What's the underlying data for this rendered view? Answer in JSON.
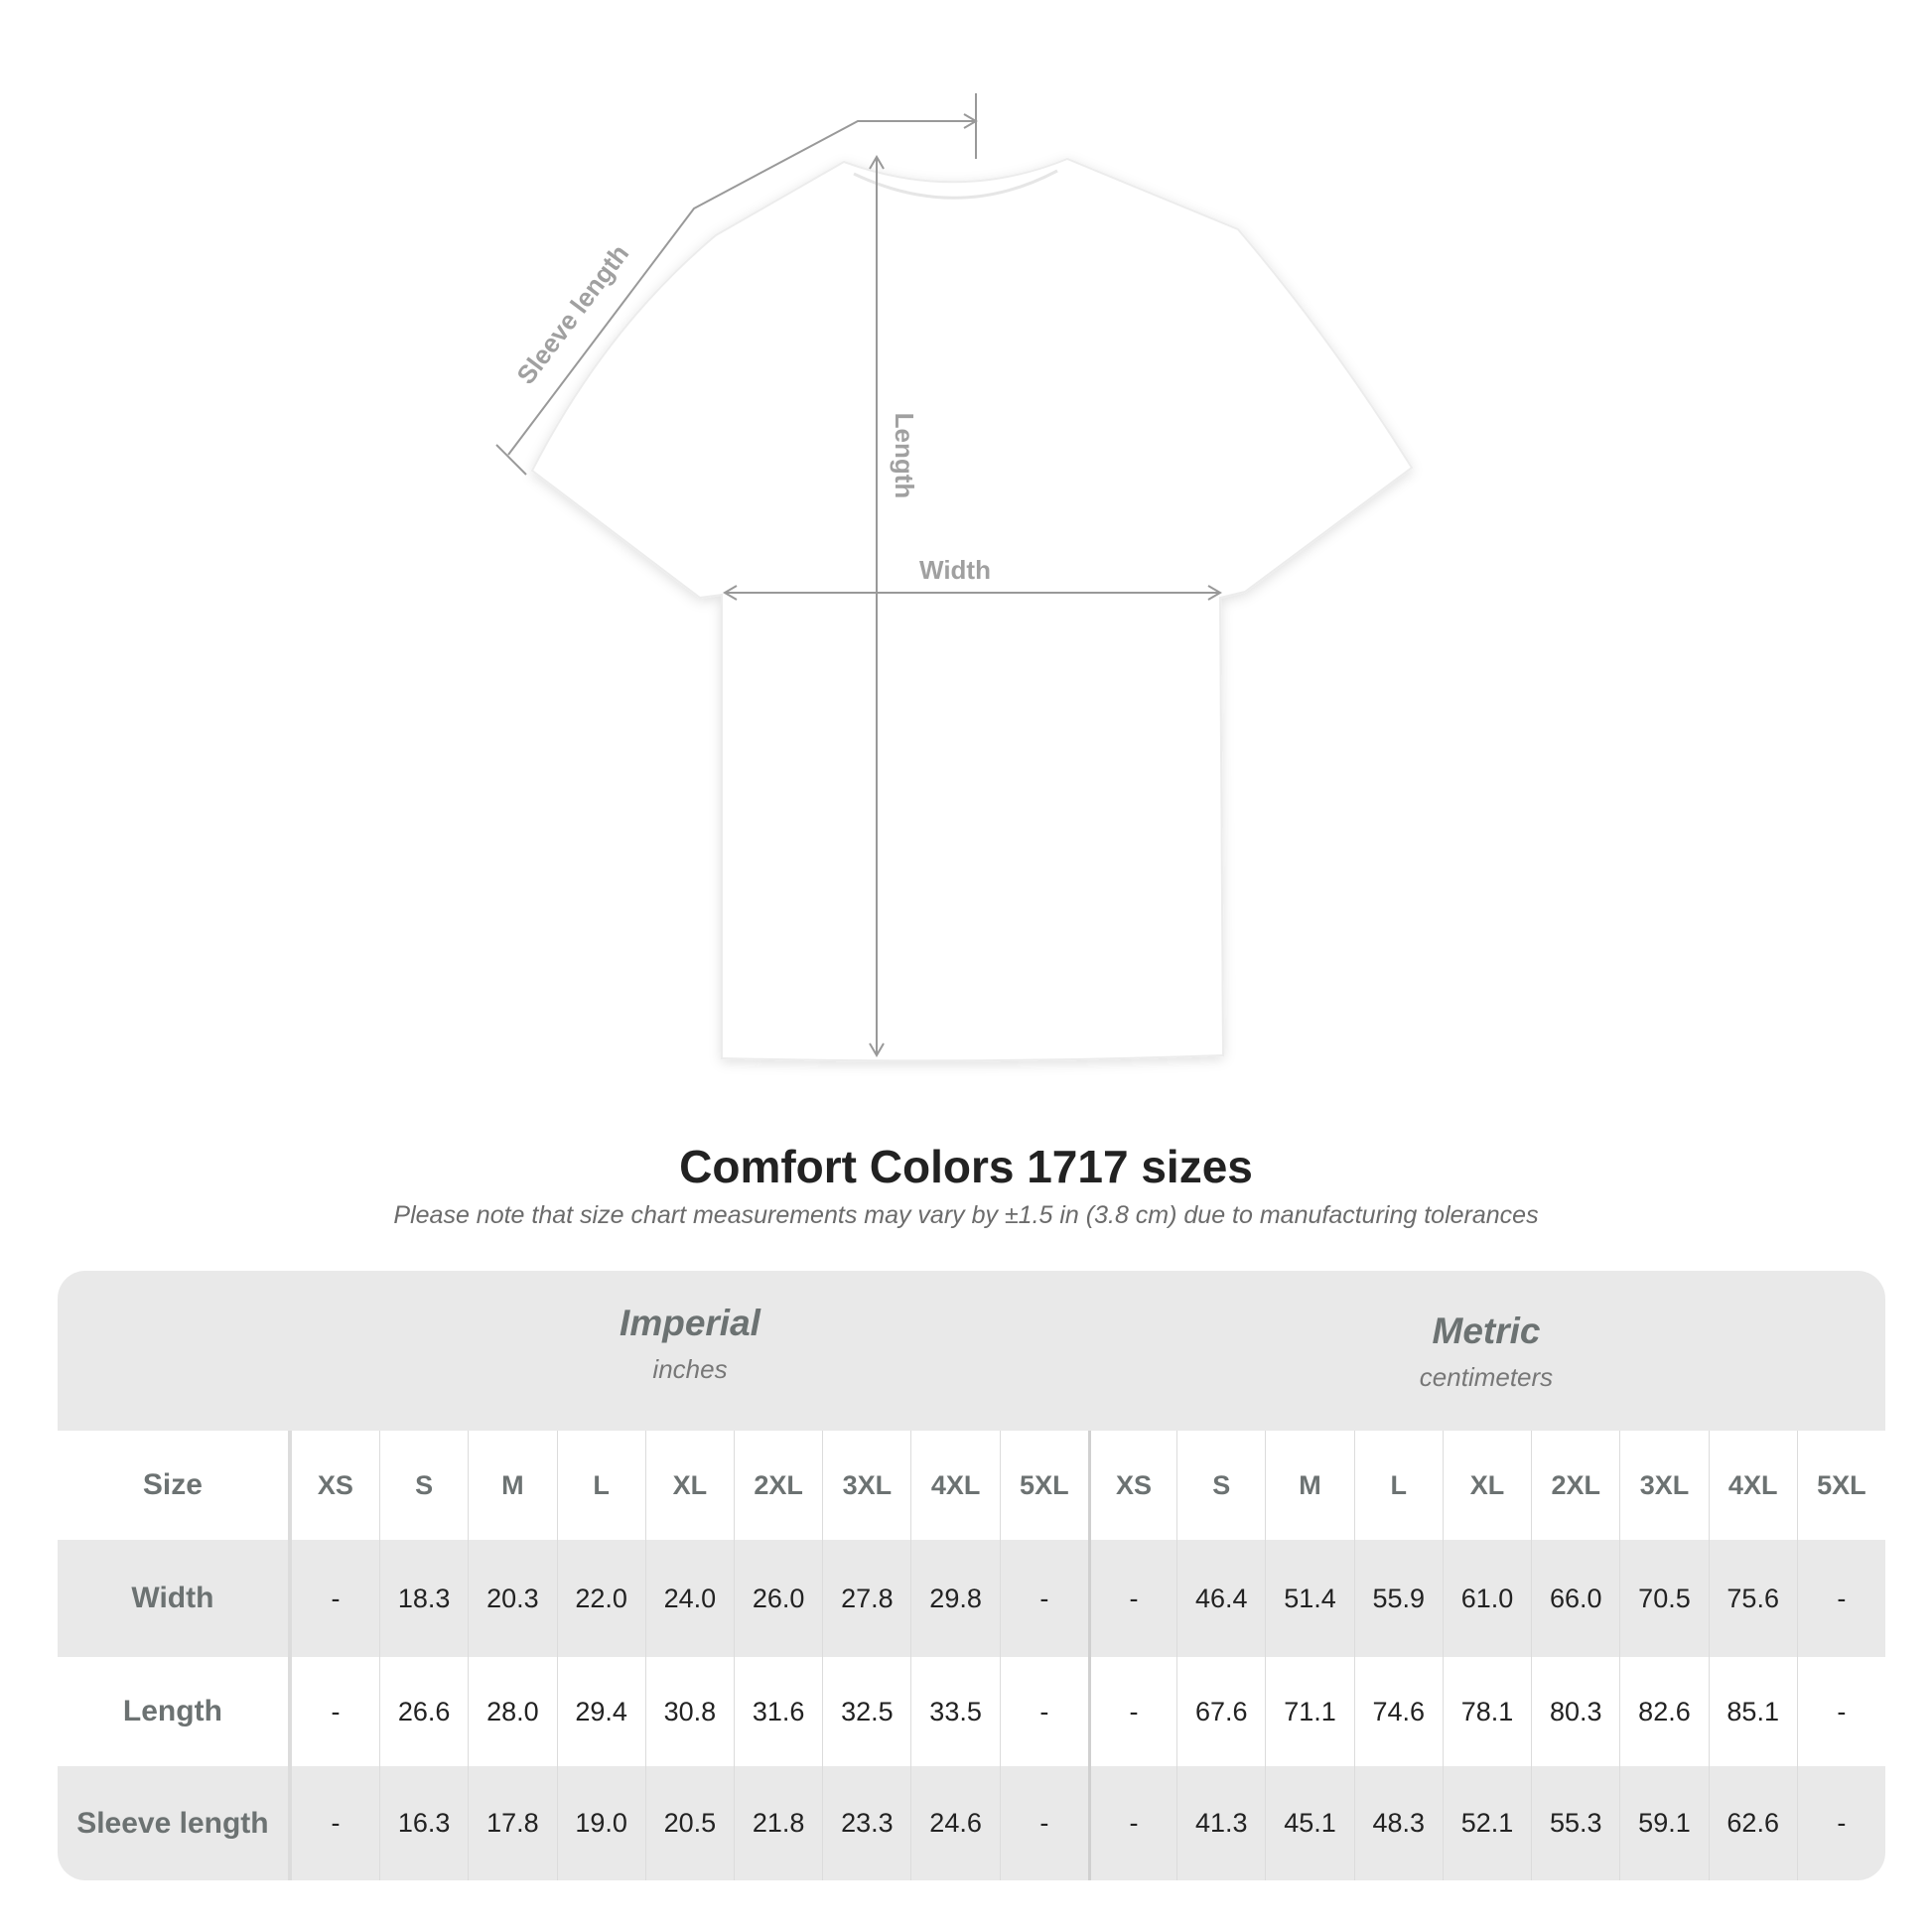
{
  "diagram": {
    "labels": {
      "sleeve": "Sleeve length",
      "length": "Length",
      "width": "Width"
    },
    "colors": {
      "lines": "#999999",
      "label_text": "#a0a0a0",
      "shirt": "#ffffff"
    }
  },
  "title": "Comfort Colors 1717 sizes",
  "subtitle": "Please note that size chart measurements may vary by ±1.5 in (3.8 cm) due to manufacturing tolerances",
  "table": {
    "imperial": {
      "name": "Imperial",
      "unit": "inches"
    },
    "metric": {
      "name": "Metric",
      "unit": "centimeters"
    },
    "size_label": "Size",
    "sizes": [
      "XS",
      "S",
      "M",
      "L",
      "XL",
      "2XL",
      "3XL",
      "4XL",
      "5XL"
    ],
    "rows": [
      {
        "label": "Width",
        "imperial": [
          "-",
          "18.3",
          "20.3",
          "22.0",
          "24.0",
          "26.0",
          "27.8",
          "29.8",
          "-"
        ],
        "metric": [
          "-",
          "46.4",
          "51.4",
          "55.9",
          "61.0",
          "66.0",
          "70.5",
          "75.6",
          "-"
        ]
      },
      {
        "label": "Length",
        "imperial": [
          "-",
          "26.6",
          "28.0",
          "29.4",
          "30.8",
          "31.6",
          "32.5",
          "33.5",
          "-"
        ],
        "metric": [
          "-",
          "67.6",
          "71.1",
          "74.6",
          "78.1",
          "80.3",
          "82.6",
          "85.1",
          "-"
        ]
      },
      {
        "label": "Sleeve length",
        "imperial": [
          "-",
          "16.3",
          "17.8",
          "19.0",
          "20.5",
          "21.8",
          "23.3",
          "24.6",
          "-"
        ],
        "metric": [
          "-",
          "41.3",
          "45.1",
          "48.3",
          "52.1",
          "55.3",
          "59.1",
          "62.6",
          "-"
        ]
      }
    ],
    "colors": {
      "band": "#e9e9e9",
      "label": "#6c7272"
    }
  }
}
